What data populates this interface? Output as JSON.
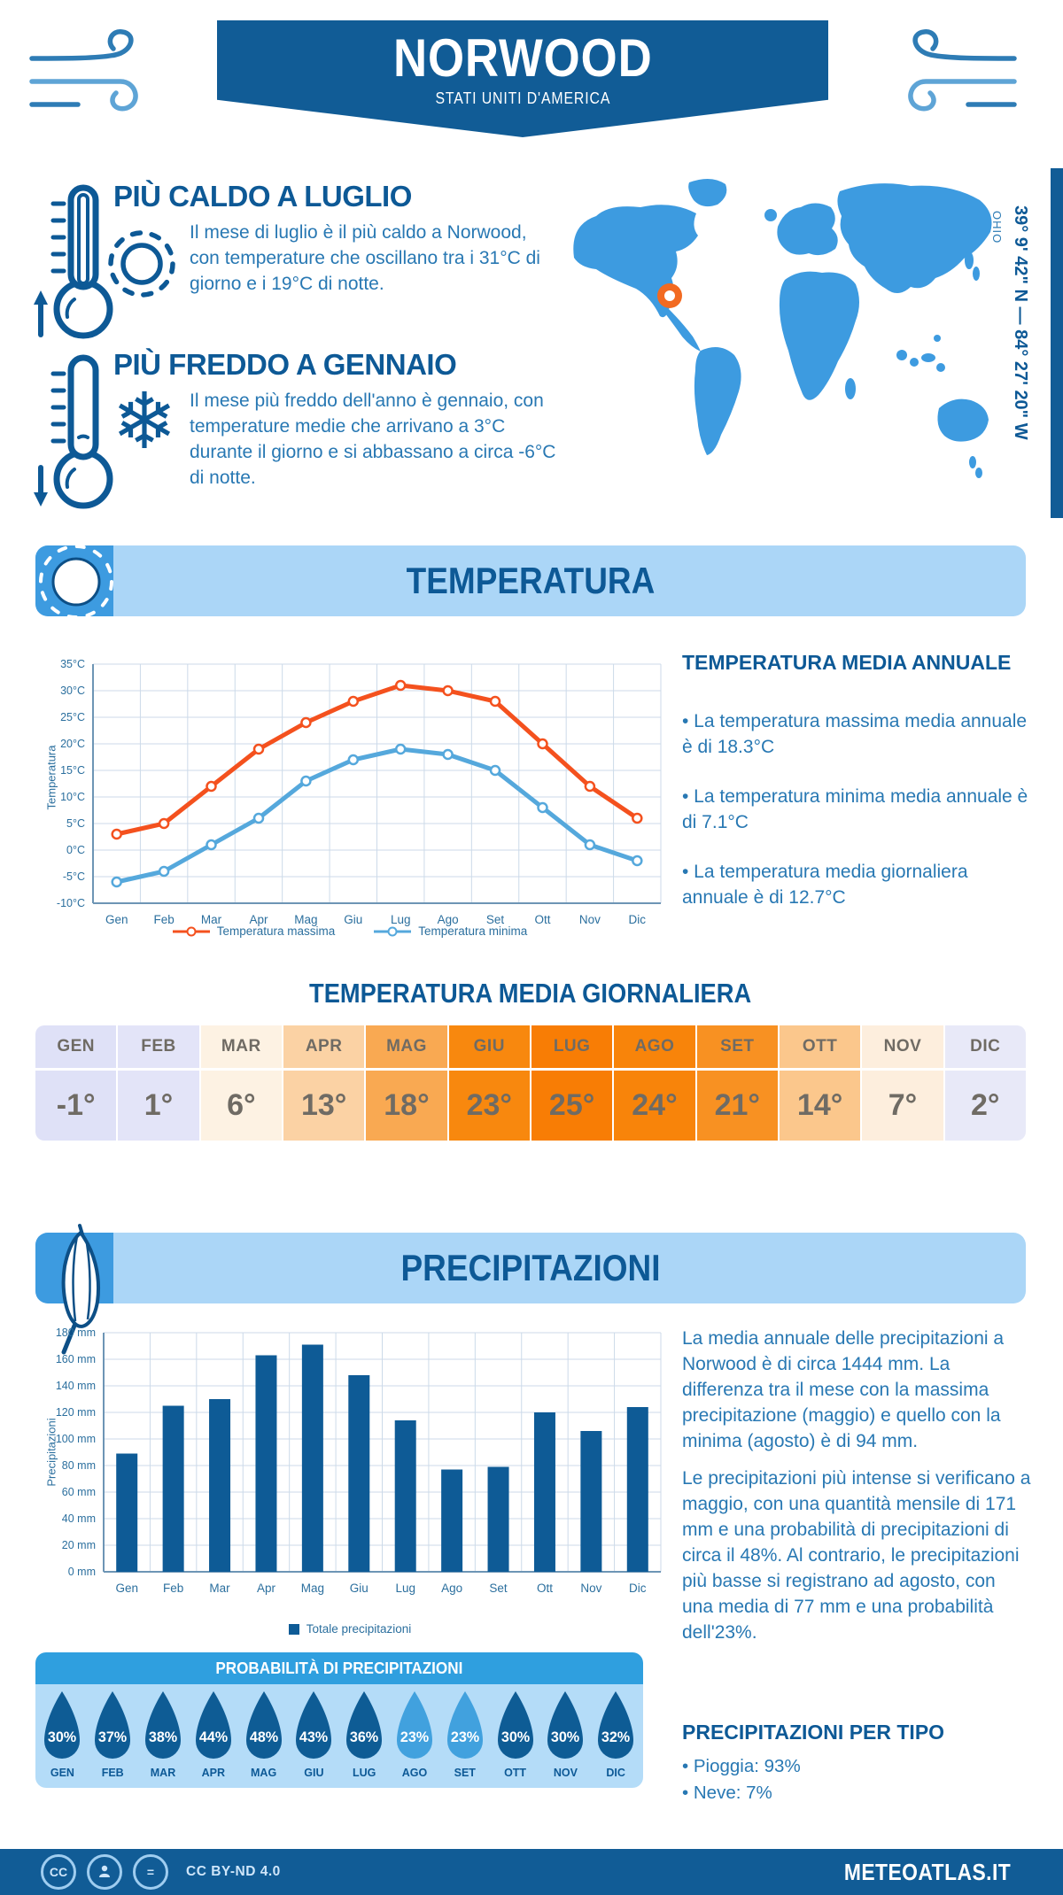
{
  "header": {
    "title": "NORWOOD",
    "subtitle": "STATI UNITI D'AMERICA"
  },
  "location": {
    "region": "OHIO",
    "coordinates": "39° 9' 42\" N — 84° 27' 20\" W"
  },
  "hot": {
    "title": "PIÙ CALDO A LUGLIO",
    "text": "Il mese di luglio è il più caldo a Norwood, con temperature che oscillano tra i 31°C di giorno e i 19°C di notte."
  },
  "cold": {
    "title": "PIÙ FREDDO A GENNAIO",
    "text": "Il mese più freddo dell'anno è gennaio, con temperature medie che arrivano a 3°C durante il giorno e si abbassano a circa -6°C di notte."
  },
  "temperature_section": {
    "banner": "TEMPERATURA",
    "annual": {
      "title": "TEMPERATURA MEDIA ANNUALE",
      "bullets": [
        "La temperatura massima media annuale è di 18.3°C",
        "La temperatura minima media annuale è di 7.1°C",
        "La temperatura media giornaliera annuale è di 12.7°C"
      ]
    },
    "daily_title": "TEMPERATURA MEDIA GIORNALIERA",
    "table": {
      "months": [
        "GEN",
        "FEB",
        "MAR",
        "APR",
        "MAG",
        "GIU",
        "LUG",
        "AGO",
        "SET",
        "OTT",
        "NOV",
        "DIC"
      ],
      "values": [
        "-1°",
        "1°",
        "6°",
        "13°",
        "18°",
        "23°",
        "25°",
        "24°",
        "21°",
        "14°",
        "7°",
        "2°"
      ],
      "cell_colors": [
        "#dfe1f7",
        "#e3e4f8",
        "#fdf2e3",
        "#fbd2a4",
        "#f9a952",
        "#f8880e",
        "#f87d05",
        "#f8840a",
        "#f89122",
        "#fbc78c",
        "#fdeedd",
        "#e8e9f8"
      ]
    }
  },
  "precipitation_section": {
    "banner": "PRECIPITAZIONI",
    "paragraph1": "La media annuale delle precipitazioni a Norwood è di circa 1444 mm. La differenza tra il mese con la massima precipitazione (maggio) e quello con la minima (agosto) è di 94 mm.",
    "paragraph2": "Le precipitazioni più intense si verificano a maggio, con una quantità mensile di 171 mm e una probabilità di precipitazioni di circa il 48%. Al contrario, le precipitazioni più basse si registrano ad agosto, con una media di 77 mm e una probabilità dell'23%.",
    "probability": {
      "title": "PROBABILITÀ DI PRECIPITAZIONI",
      "months": [
        "GEN",
        "FEB",
        "MAR",
        "APR",
        "MAG",
        "GIU",
        "LUG",
        "AGO",
        "SET",
        "OTT",
        "NOV",
        "DIC"
      ],
      "values": [
        "30%",
        "37%",
        "38%",
        "44%",
        "48%",
        "43%",
        "36%",
        "23%",
        "23%",
        "30%",
        "30%",
        "32%"
      ],
      "light_indices": [
        7,
        8
      ],
      "drop_color": "#0e5c95",
      "drop_color_light": "#41a1de"
    },
    "types": {
      "title": "PRECIPITAZIONI PER TIPO",
      "bullets": [
        "Pioggia: 93%",
        "Neve: 7%"
      ]
    }
  },
  "footer": {
    "license": "CC BY-ND 4.0",
    "site": "METEOATLAS.IT"
  },
  "palette": {
    "brand_navy": "#115c96",
    "heading_blue": "#0d5996",
    "body_blue": "#2878b3",
    "accent_blue": "#2f9fdf",
    "light_banner": "#abd6f7",
    "map_blue": "#3d9be0",
    "marker_orange": "#f26a21"
  },
  "chart_data": [
    {
      "type": "line",
      "title": "Temperatura",
      "categories": [
        "Gen",
        "Feb",
        "Mar",
        "Apr",
        "Mag",
        "Giu",
        "Lug",
        "Ago",
        "Set",
        "Ott",
        "Nov",
        "Dic"
      ],
      "series": [
        {
          "name": "Temperatura massima",
          "color": "#f4511e",
          "values": [
            3,
            5,
            12,
            19,
            24,
            28,
            31,
            30,
            28,
            20,
            12,
            6
          ]
        },
        {
          "name": "Temperatura minima",
          "color": "#55a8dc",
          "values": [
            -6,
            -4,
            1,
            6,
            13,
            17,
            19,
            18,
            15,
            8,
            1,
            -2
          ]
        }
      ],
      "ylabel": "Temperatura",
      "ylim": [
        -10,
        35
      ],
      "ytick_step": 5,
      "yunit": "°C",
      "grid": true,
      "legend_position": "bottom"
    },
    {
      "type": "bar",
      "title": "Precipitazioni",
      "categories": [
        "Gen",
        "Feb",
        "Mar",
        "Apr",
        "Mag",
        "Giu",
        "Lug",
        "Ago",
        "Set",
        "Ott",
        "Nov",
        "Dic"
      ],
      "values": [
        89,
        125,
        130,
        163,
        171,
        148,
        114,
        77,
        79,
        120,
        106,
        124
      ],
      "color": "#0e5b96",
      "legend": "Totale precipitazioni",
      "ylabel": "Precipitazioni",
      "ylim": [
        0,
        180
      ],
      "ytick_step": 20,
      "yunit": " mm",
      "grid": true
    }
  ]
}
